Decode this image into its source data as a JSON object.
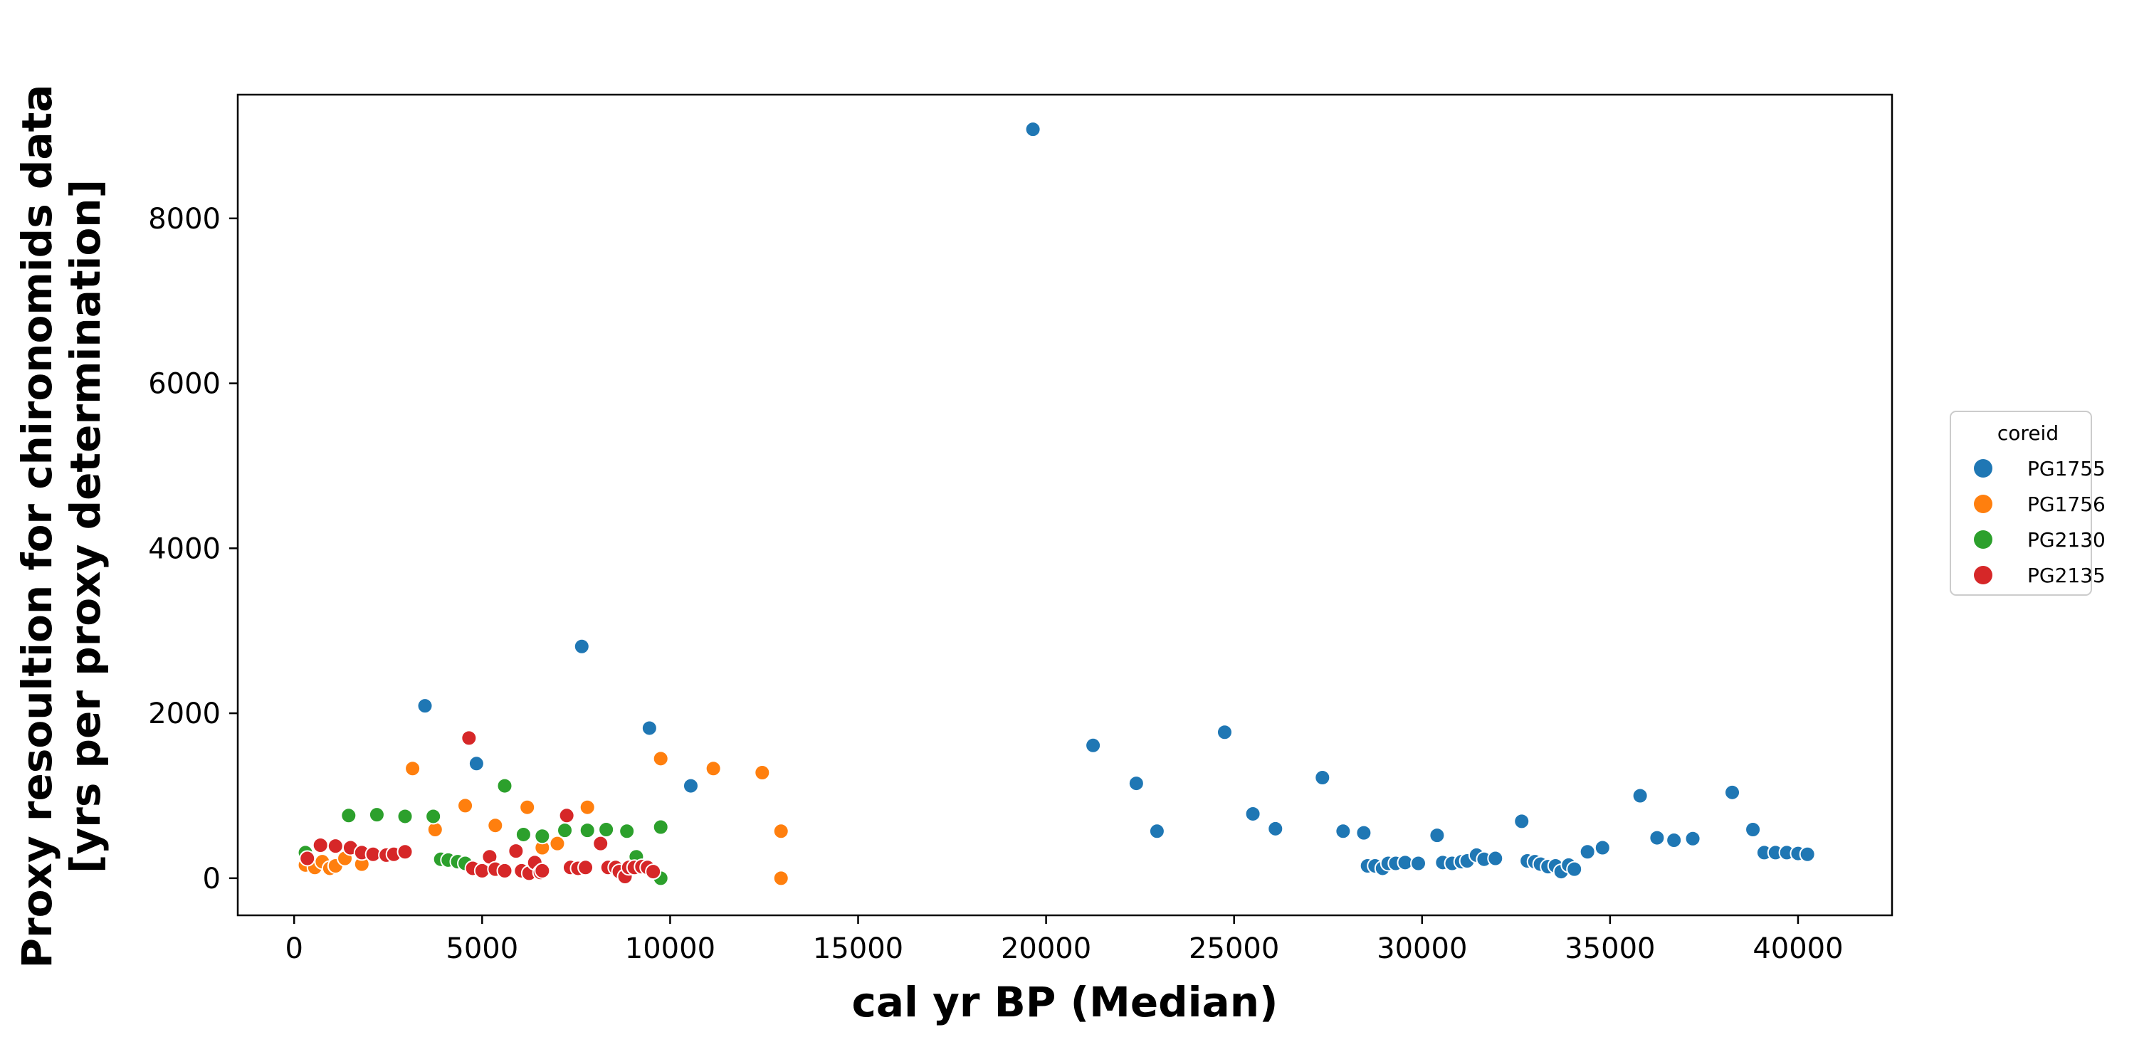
{
  "chart_data": {
    "type": "scatter",
    "title": "",
    "xlabel": "cal yr BP (Median)",
    "ylabel_lines": [
      "Proxy resoultion for chironomids data",
      "[yrs per proxy determination]"
    ],
    "xlim": [
      -1500,
      42500
    ],
    "ylim": [
      -450,
      9500
    ],
    "xticks": [
      0,
      5000,
      10000,
      15000,
      20000,
      25000,
      30000,
      35000,
      40000
    ],
    "yticks": [
      0,
      2000,
      4000,
      6000,
      8000
    ],
    "grid": false,
    "legend": {
      "title": "coreid",
      "placement": "right-outside",
      "entries": [
        "PG1755",
        "PG1756",
        "PG2130",
        "PG2135"
      ]
    },
    "series": [
      {
        "name": "PG1755",
        "color": "#1f77b4",
        "points": [
          [
            3480,
            2090
          ],
          [
            4850,
            1390
          ],
          [
            7650,
            2810
          ],
          [
            9450,
            1820
          ],
          [
            10550,
            1120
          ],
          [
            19650,
            9080
          ],
          [
            21250,
            1610
          ],
          [
            22400,
            1150
          ],
          [
            22950,
            570
          ],
          [
            24750,
            1770
          ],
          [
            25500,
            780
          ],
          [
            26100,
            600
          ],
          [
            27350,
            1220
          ],
          [
            27900,
            570
          ],
          [
            28450,
            550
          ],
          [
            28550,
            150
          ],
          [
            28750,
            150
          ],
          [
            28950,
            120
          ],
          [
            29100,
            180
          ],
          [
            29300,
            180
          ],
          [
            29550,
            190
          ],
          [
            29900,
            180
          ],
          [
            30400,
            520
          ],
          [
            30550,
            190
          ],
          [
            30800,
            180
          ],
          [
            31050,
            200
          ],
          [
            31200,
            210
          ],
          [
            31450,
            280
          ],
          [
            31650,
            230
          ],
          [
            31950,
            240
          ],
          [
            32650,
            690
          ],
          [
            32800,
            210
          ],
          [
            33000,
            200
          ],
          [
            33150,
            170
          ],
          [
            33350,
            140
          ],
          [
            33550,
            150
          ],
          [
            33700,
            80
          ],
          [
            33900,
            160
          ],
          [
            34050,
            110
          ],
          [
            34400,
            320
          ],
          [
            34800,
            370
          ],
          [
            35800,
            1000
          ],
          [
            36250,
            490
          ],
          [
            36700,
            460
          ],
          [
            37200,
            480
          ],
          [
            38250,
            1040
          ],
          [
            38800,
            590
          ],
          [
            39100,
            310
          ],
          [
            39400,
            310
          ],
          [
            39700,
            310
          ],
          [
            40000,
            300
          ],
          [
            40250,
            290
          ]
        ]
      },
      {
        "name": "PG1756",
        "color": "#ff7f0e",
        "points": [
          [
            300,
            160
          ],
          [
            550,
            130
          ],
          [
            750,
            200
          ],
          [
            950,
            120
          ],
          [
            1100,
            150
          ],
          [
            1350,
            240
          ],
          [
            1800,
            170
          ],
          [
            3150,
            1330
          ],
          [
            3750,
            590
          ],
          [
            4550,
            880
          ],
          [
            5350,
            640
          ],
          [
            6200,
            860
          ],
          [
            6600,
            370
          ],
          [
            7000,
            420
          ],
          [
            7800,
            860
          ],
          [
            9750,
            1450
          ],
          [
            11150,
            1330
          ],
          [
            12450,
            1280
          ],
          [
            12950,
            570
          ],
          [
            12950,
            0
          ]
        ]
      },
      {
        "name": "PG2130",
        "color": "#2ca02c",
        "points": [
          [
            300,
            310
          ],
          [
            1450,
            760
          ],
          [
            2200,
            770
          ],
          [
            2950,
            750
          ],
          [
            3700,
            750
          ],
          [
            3900,
            230
          ],
          [
            4100,
            220
          ],
          [
            4350,
            200
          ],
          [
            4550,
            180
          ],
          [
            5600,
            1120
          ],
          [
            6100,
            530
          ],
          [
            6600,
            510
          ],
          [
            7200,
            580
          ],
          [
            7800,
            580
          ],
          [
            8300,
            590
          ],
          [
            8850,
            570
          ],
          [
            9100,
            260
          ],
          [
            9750,
            620
          ],
          [
            9750,
            0
          ]
        ]
      },
      {
        "name": "PG2135",
        "color": "#d62728",
        "points": [
          [
            350,
            240
          ],
          [
            700,
            400
          ],
          [
            1100,
            390
          ],
          [
            1500,
            370
          ],
          [
            1800,
            310
          ],
          [
            2100,
            290
          ],
          [
            2450,
            280
          ],
          [
            2650,
            290
          ],
          [
            2950,
            320
          ],
          [
            4650,
            1700
          ],
          [
            4750,
            120
          ],
          [
            5000,
            90
          ],
          [
            5200,
            260
          ],
          [
            5350,
            110
          ],
          [
            5600,
            90
          ],
          [
            5900,
            330
          ],
          [
            6050,
            90
          ],
          [
            6250,
            60
          ],
          [
            6400,
            190
          ],
          [
            6550,
            70
          ],
          [
            6600,
            90
          ],
          [
            7250,
            760
          ],
          [
            7350,
            130
          ],
          [
            7550,
            120
          ],
          [
            7750,
            130
          ],
          [
            8150,
            420
          ],
          [
            8350,
            130
          ],
          [
            8550,
            130
          ],
          [
            8650,
            80
          ],
          [
            8800,
            20
          ],
          [
            8900,
            130
          ],
          [
            9050,
            130
          ],
          [
            9250,
            140
          ],
          [
            9400,
            130
          ],
          [
            9550,
            80
          ]
        ]
      }
    ]
  }
}
